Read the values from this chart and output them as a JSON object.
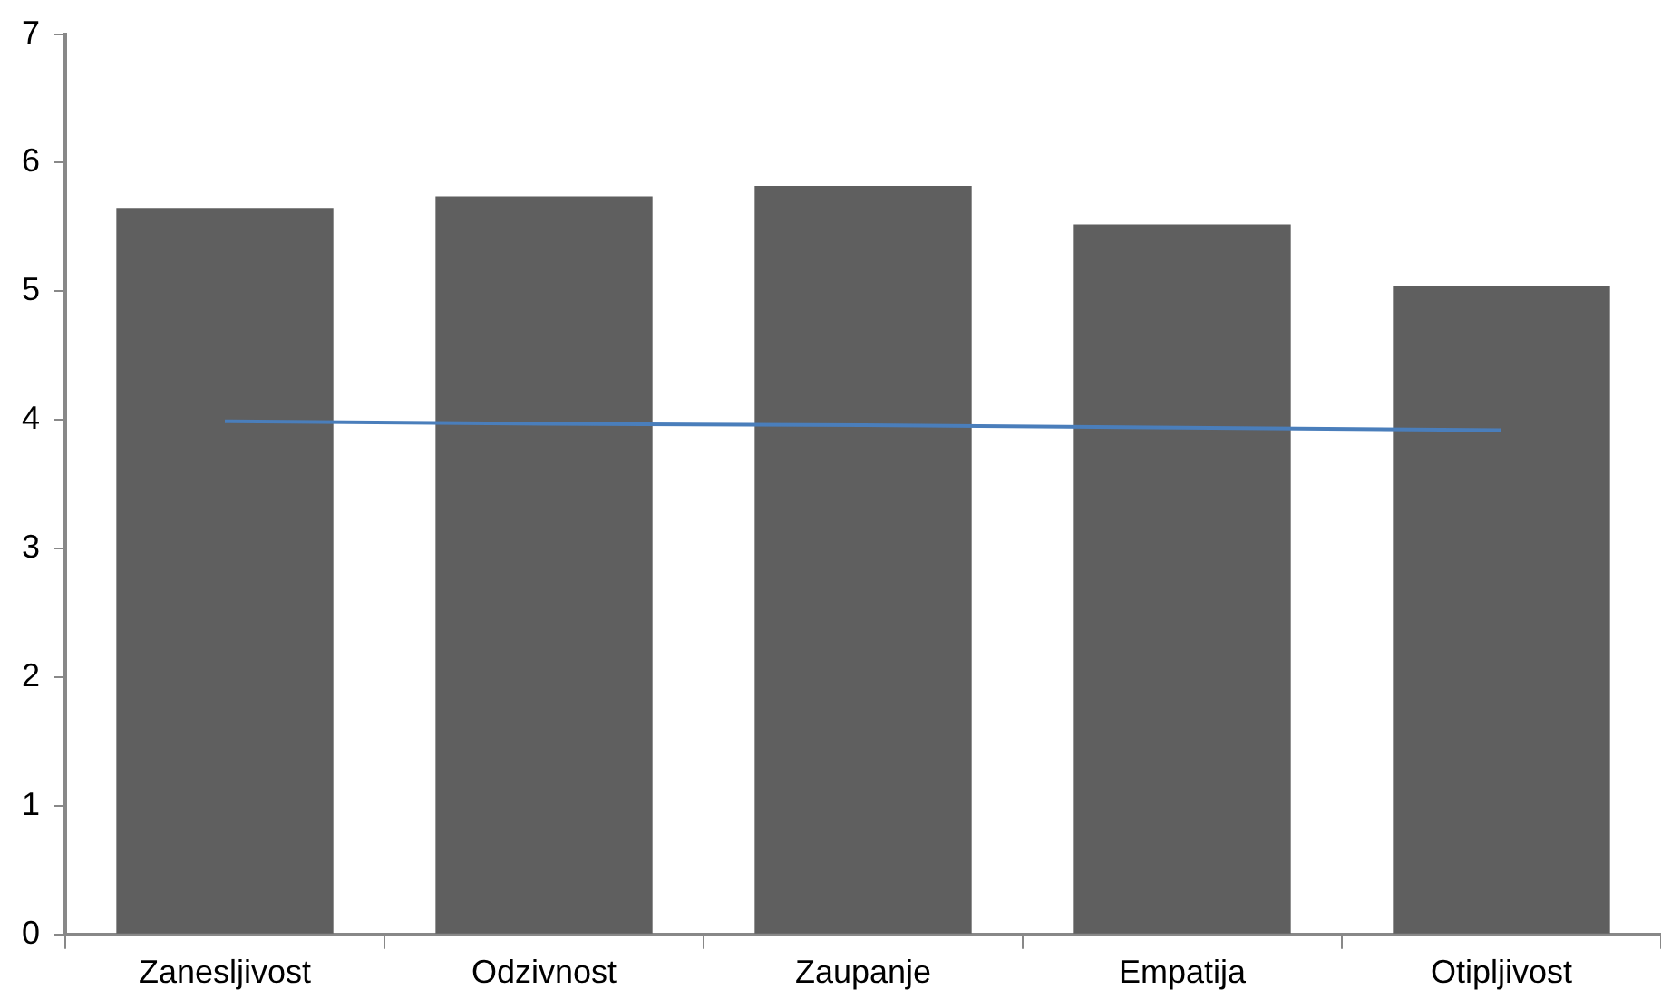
{
  "chart_data": {
    "type": "bar",
    "categories": [
      "Zanesljivost",
      "Odzivnost",
      "Zaupanje",
      "Empatija",
      "Otipljivost"
    ],
    "series": [
      {
        "color": "#5f5f5f",
        "values": [
          5.65,
          5.74,
          5.82,
          5.52,
          5.04
        ]
      },
      {
        "type": "line",
        "color": "#4a7ebb",
        "values": [
          3.99,
          3.97,
          3.96,
          3.94,
          3.92
        ]
      }
    ],
    "ylim": [
      0,
      7
    ],
    "yticks": [
      0,
      1,
      2,
      3,
      4,
      5,
      6,
      7
    ],
    "grid": false,
    "legend": false,
    "marker": "none",
    "line_style": "solid"
  }
}
